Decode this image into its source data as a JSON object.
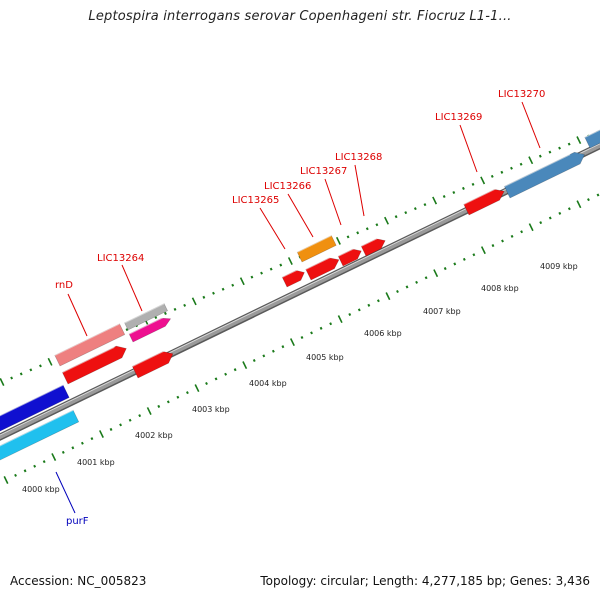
{
  "title": "Leptospira interrogans serovar Copenhageni str. Fiocruz L1-1...",
  "footer": {
    "accession": "Accession: NC_005823",
    "summary": "Topology: circular; Length: 4,277,185 bp; Genes: 3,436"
  },
  "colors": {
    "label_red": "#dd0000",
    "label_blue": "#0000bb",
    "tick_green": "#1a7a1a",
    "backbone": "#888888"
  },
  "scale_labels": [
    "4000 kbp",
    "4001 kbp",
    "4002 kbp",
    "4003 kbp",
    "4004 kbp",
    "4005 kbp",
    "4006 kbp",
    "4007 kbp",
    "4008 kbp",
    "4009 kbp"
  ],
  "gene_labels": [
    {
      "name": "rnD",
      "color": "#dd0000"
    },
    {
      "name": "LIC13264",
      "color": "#dd0000"
    },
    {
      "name": "LIC13265",
      "color": "#dd0000"
    },
    {
      "name": "LIC13266",
      "color": "#dd0000"
    },
    {
      "name": "LIC13267",
      "color": "#dd0000"
    },
    {
      "name": "LIC13268",
      "color": "#dd0000"
    },
    {
      "name": "LIC13269",
      "color": "#dd0000"
    },
    {
      "name": "LIC13270",
      "color": "#dd0000"
    },
    {
      "name": "purF",
      "color": "#0000bb"
    }
  ],
  "features": [
    {
      "name": "gene-blue-dark",
      "color": "#1010d0"
    },
    {
      "name": "gene-blue-light",
      "color": "#20c0ee"
    },
    {
      "name": "gene-pink",
      "color": "#ee8080"
    },
    {
      "name": "gene-red-1",
      "color": "#ee1010"
    },
    {
      "name": "gene-grey",
      "color": "#b0b0b0"
    },
    {
      "name": "gene-magenta",
      "color": "#ee1090"
    },
    {
      "name": "gene-red-2",
      "color": "#ee1010"
    },
    {
      "name": "gene-orange",
      "color": "#f09010"
    },
    {
      "name": "gene-red-3",
      "color": "#ee1010"
    },
    {
      "name": "gene-red-4",
      "color": "#ee1010"
    },
    {
      "name": "gene-red-5",
      "color": "#ee1010"
    },
    {
      "name": "gene-red-6",
      "color": "#ee1010"
    },
    {
      "name": "gene-red-7",
      "color": "#ee1010"
    },
    {
      "name": "gene-steelblue",
      "color": "#4a88bb"
    }
  ]
}
